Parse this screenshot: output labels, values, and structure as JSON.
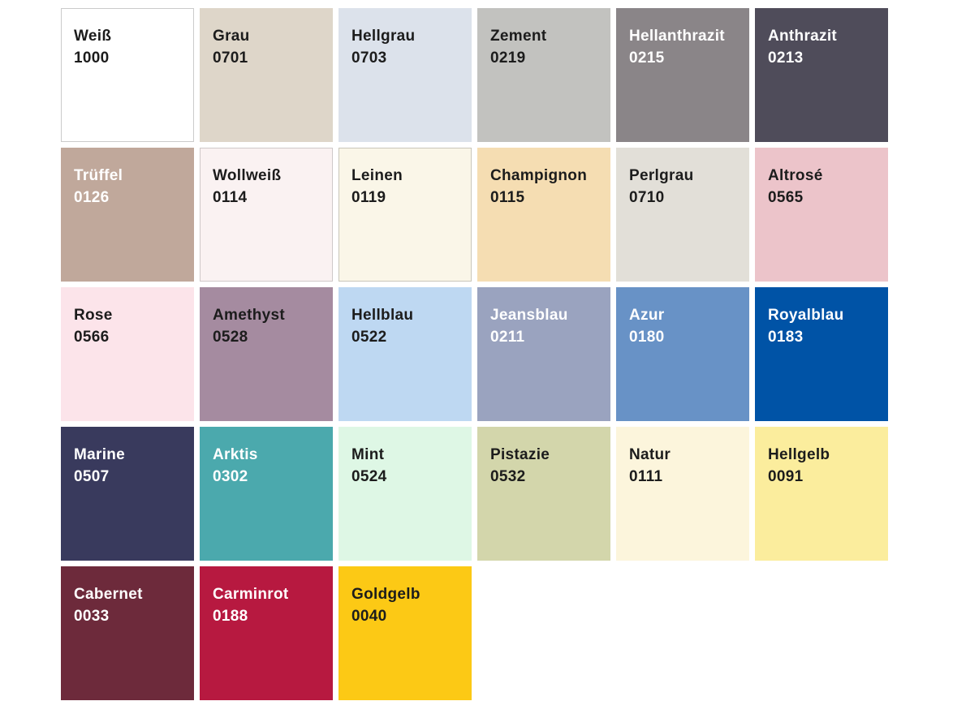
{
  "palette": {
    "text_dark": "#1c1c1c",
    "text_light": "#ffffff",
    "swatches": [
      {
        "name": "Weiß",
        "code": "1000",
        "bg": "#ffffff",
        "text": "#1c1c1c",
        "border": "#cbcbcb"
      },
      {
        "name": "Grau",
        "code": "0701",
        "bg": "#ded6c9",
        "text": "#1c1c1c",
        "border": ""
      },
      {
        "name": "Hellgrau",
        "code": "0703",
        "bg": "#dce2eb",
        "text": "#1c1c1c",
        "border": ""
      },
      {
        "name": "Zement",
        "code": "0219",
        "bg": "#c2c2bf",
        "text": "#1c1c1c",
        "border": ""
      },
      {
        "name": "Hellanthrazit",
        "code": "0215",
        "bg": "#8a8588",
        "text": "#ffffff",
        "border": ""
      },
      {
        "name": "Anthrazit",
        "code": "0213",
        "bg": "#4f4c5a",
        "text": "#ffffff",
        "border": ""
      },
      {
        "name": "Trüffel",
        "code": "0126",
        "bg": "#c0a89b",
        "text": "#ffffff",
        "border": ""
      },
      {
        "name": "Wollweiß",
        "code": "0114",
        "bg": "#faf2f2",
        "text": "#1c1c1c",
        "border": "#cfc9c9"
      },
      {
        "name": "Leinen",
        "code": "0119",
        "bg": "#faf6e8",
        "text": "#1c1c1c",
        "border": "#c9c6ba"
      },
      {
        "name": "Champignon",
        "code": "0115",
        "bg": "#f5ddb2",
        "text": "#1c1c1c",
        "border": ""
      },
      {
        "name": "Perlgrau",
        "code": "0710",
        "bg": "#e2dfd8",
        "text": "#1c1c1c",
        "border": ""
      },
      {
        "name": "Altrosé",
        "code": "0565",
        "bg": "#ecc4ca",
        "text": "#1c1c1c",
        "border": ""
      },
      {
        "name": "Rose",
        "code": "0566",
        "bg": "#fce4ea",
        "text": "#1c1c1c",
        "border": ""
      },
      {
        "name": "Amethyst",
        "code": "0528",
        "bg": "#a58ba0",
        "text": "#1c1c1c",
        "border": ""
      },
      {
        "name": "Hellblau",
        "code": "0522",
        "bg": "#bed8f2",
        "text": "#1c1c1c",
        "border": ""
      },
      {
        "name": "Jeansblau",
        "code": "0211",
        "bg": "#9aa3bf",
        "text": "#ffffff",
        "border": ""
      },
      {
        "name": "Azur",
        "code": "0180",
        "bg": "#6892c6",
        "text": "#ffffff",
        "border": ""
      },
      {
        "name": "Royalblau",
        "code": "0183",
        "bg": "#0053a6",
        "text": "#ffffff",
        "border": ""
      },
      {
        "name": "Marine",
        "code": "0507",
        "bg": "#393a5d",
        "text": "#ffffff",
        "border": ""
      },
      {
        "name": "Arktis",
        "code": "0302",
        "bg": "#4ba9ad",
        "text": "#ffffff",
        "border": ""
      },
      {
        "name": "Mint",
        "code": "0524",
        "bg": "#def7e5",
        "text": "#1c1c1c",
        "border": ""
      },
      {
        "name": "Pistazie",
        "code": "0532",
        "bg": "#d3d6ab",
        "text": "#1c1c1c",
        "border": ""
      },
      {
        "name": "Natur",
        "code": "0111",
        "bg": "#fcf5dc",
        "text": "#1c1c1c",
        "border": ""
      },
      {
        "name": "Hellgelb",
        "code": "0091",
        "bg": "#fbed9d",
        "text": "#1c1c1c",
        "border": ""
      },
      {
        "name": "Cabernet",
        "code": "0033",
        "bg": "#6d2a3b",
        "text": "#ffffff",
        "border": ""
      },
      {
        "name": "Carminrot",
        "code": "0188",
        "bg": "#b71940",
        "text": "#ffffff",
        "border": ""
      },
      {
        "name": "Goldgelb",
        "code": "0040",
        "bg": "#fcc915",
        "text": "#1c1c1c",
        "border": ""
      }
    ]
  }
}
